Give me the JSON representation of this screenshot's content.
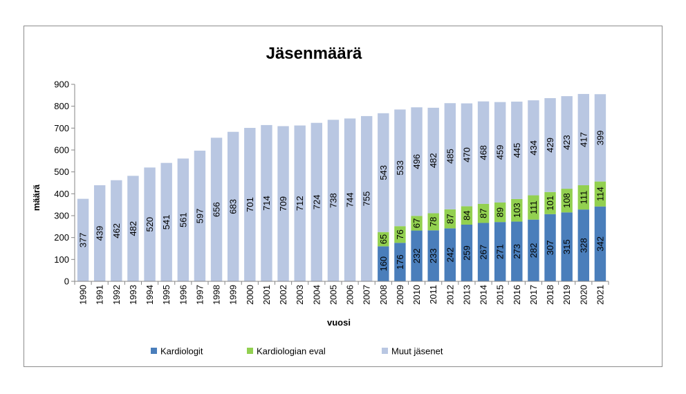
{
  "chart_data": {
    "type": "bar",
    "stacked": true,
    "title": "Jäsenmäärä",
    "xlabel": "vuosi",
    "ylabel": "määrä",
    "ylim": [
      0,
      900
    ],
    "yticks": [
      "0",
      "100",
      "200",
      "300",
      "400",
      "500",
      "600",
      "700",
      "800",
      "900"
    ],
    "grid": false,
    "legend_position": "bottom",
    "categories": [
      "1990",
      "1991",
      "1992",
      "1993",
      "1994",
      "1995",
      "1996",
      "1997",
      "1998",
      "1999",
      "2000",
      "2001",
      "2002",
      "2003",
      "2004",
      "2005",
      "2006",
      "2007",
      "2008",
      "2009",
      "2010",
      "2011",
      "2012",
      "2013",
      "2014",
      "2015",
      "2016",
      "2017",
      "2018",
      "2019",
      "2020",
      "2021"
    ],
    "series": [
      {
        "name": "Kardiologit",
        "color": "#4a7ebb",
        "values": [
          null,
          null,
          null,
          null,
          null,
          null,
          null,
          null,
          null,
          null,
          null,
          null,
          null,
          null,
          null,
          null,
          null,
          null,
          160,
          176,
          232,
          233,
          242,
          259,
          267,
          271,
          273,
          282,
          307,
          315,
          328,
          342
        ]
      },
      {
        "name": "Kardiologian eval",
        "color": "#92d050",
        "values": [
          null,
          null,
          null,
          null,
          null,
          null,
          null,
          null,
          null,
          null,
          null,
          null,
          null,
          null,
          null,
          null,
          null,
          null,
          65,
          76,
          67,
          78,
          87,
          84,
          87,
          89,
          103,
          111,
          101,
          108,
          111,
          114
        ]
      },
      {
        "name": "Muut jäsenet",
        "color": "#b9c7e2",
        "values": [
          377,
          439,
          462,
          482,
          520,
          541,
          561,
          597,
          656,
          683,
          701,
          714,
          709,
          712,
          724,
          738,
          744,
          755,
          543,
          533,
          496,
          482,
          485,
          470,
          468,
          459,
          445,
          434,
          429,
          423,
          417,
          399
        ]
      }
    ]
  }
}
